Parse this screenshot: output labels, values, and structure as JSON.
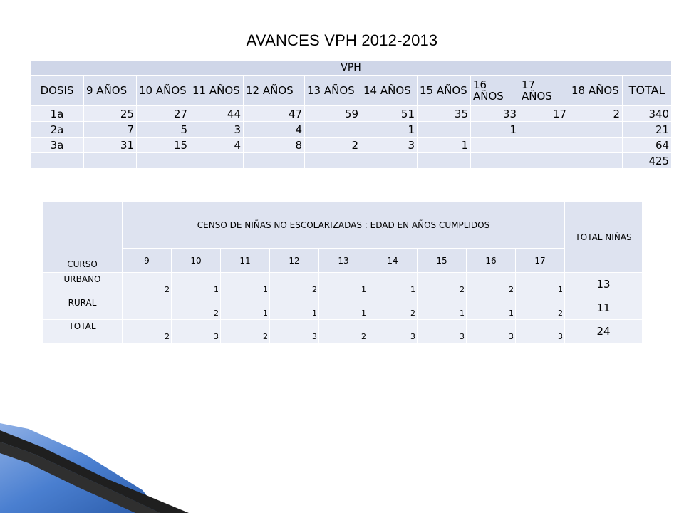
{
  "title": "AVANCES VPH 2012-2013",
  "table1": {
    "group_header": "VPH",
    "headers": [
      "DOSIS",
      "9 AÑOS",
      "10 AÑOS",
      "11 AÑOS",
      "12 AÑOS",
      "13 AÑOS",
      "14 AÑOS",
      "15 AÑOS",
      "16 AÑOS",
      "17 AÑOS",
      "18 AÑOS",
      "TOTAL"
    ],
    "rows": [
      [
        "1a",
        "25",
        "27",
        "44",
        "47",
        "59",
        "51",
        "35",
        "33",
        "17",
        "2",
        "340"
      ],
      [
        "2a",
        "7",
        "5",
        "3",
        "4",
        "",
        "1",
        "",
        "1",
        "",
        "",
        "21"
      ],
      [
        "3a",
        "31",
        "15",
        "4",
        "8",
        "2",
        "3",
        "1",
        "",
        "",
        "",
        "64"
      ],
      [
        "",
        "",
        "",
        "",
        "",
        "",
        "",
        "",
        "",
        "",
        "",
        "425"
      ]
    ]
  },
  "table2": {
    "curso_header": "CURSO",
    "censo_header": "CENSO DE NIÑAS NO ESCOLARIZADAS : EDAD EN AÑOS CUMPLIDOS",
    "total_header": "TOTAL NIÑAS",
    "ages": [
      "9",
      "10",
      "11",
      "12",
      "13",
      "14",
      "15",
      "16",
      "17"
    ],
    "rows": [
      {
        "label": "URBANO",
        "values": [
          "2",
          "1",
          "1",
          "2",
          "1",
          "1",
          "2",
          "2",
          "1"
        ],
        "total": "13"
      },
      {
        "label": "RURAL",
        "values": [
          "",
          "2",
          "1",
          "1",
          "1",
          "2",
          "1",
          "1",
          "2"
        ],
        "total": "11"
      },
      {
        "label": "TOTAL",
        "values": [
          "2",
          "3",
          "2",
          "3",
          "2",
          "3",
          "3",
          "3",
          "3"
        ],
        "total": "24"
      }
    ]
  },
  "colors": {
    "header_dark": "#cfd6e8",
    "header": "#d9dfee",
    "row": "#e9ecf6",
    "deco_blue": "#3a6fc4",
    "deco_dark": "#1f1f1f"
  }
}
